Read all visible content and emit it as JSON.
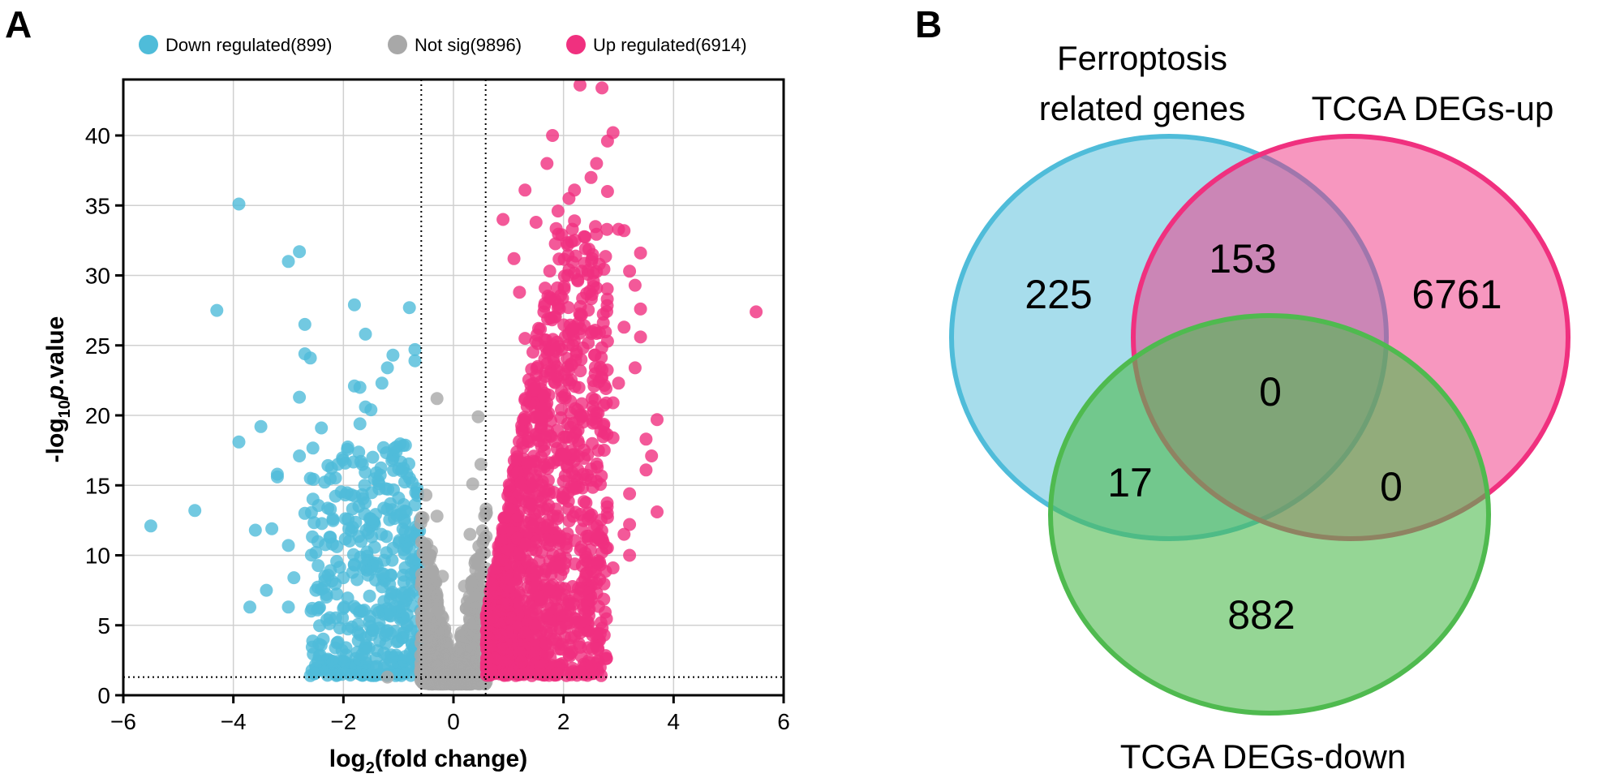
{
  "panels": {
    "a": "A",
    "b": "B"
  },
  "colors": {
    "down": "#4fbcd9",
    "notsig": "#a8a8a8",
    "up": "#f0307f",
    "green": "#4fba4f"
  },
  "chart_data": [
    {
      "type": "scatter",
      "xlabel_base": "log",
      "xlabel_sub": "2",
      "xlabel_rest": "(fold change)",
      "ylabel_pre": "-log",
      "ylabel_sub": "10",
      "ylabel_p": "p",
      "ylabel_rest": ".value",
      "xlim": [
        -6,
        6
      ],
      "ylim": [
        0,
        44
      ],
      "x_ticks": [
        -6,
        -4,
        -2,
        0,
        2,
        4,
        6
      ],
      "x_tick_labels": [
        "−6",
        "−4",
        "−2",
        "0",
        "2",
        "4",
        "6"
      ],
      "y_ticks": [
        0,
        5,
        10,
        15,
        20,
        25,
        30,
        35,
        40
      ],
      "y_tick_labels": [
        "0",
        "5",
        "10",
        "15",
        "20",
        "25",
        "30",
        "35",
        "40"
      ],
      "grid": true,
      "threshold_lines": {
        "x": [
          -0.585,
          0.585
        ],
        "y": 1.3
      },
      "legend": {
        "placement": "top",
        "items": [
          {
            "key": "down",
            "label": "Down regulated(899)"
          },
          {
            "key": "notsig",
            "label": "Not sig(9896)"
          },
          {
            "key": "up",
            "label": "Up regulated(6914)"
          }
        ]
      },
      "series": [
        {
          "key": "down",
          "name": "Down regulated(899)",
          "points": [
            [
              -5.5,
              12.1
            ],
            [
              -4.7,
              13.2
            ],
            [
              -3.9,
              35.1
            ],
            [
              -4.3,
              27.5
            ],
            [
              -3.6,
              11.8
            ],
            [
              -3.7,
              6.3
            ],
            [
              -3.9,
              18.1
            ],
            [
              -3.4,
              7.5
            ],
            [
              -3.5,
              19.2
            ],
            [
              -3.3,
              11.9
            ],
            [
              -3.2,
              15.6
            ],
            [
              -3.2,
              15.8
            ],
            [
              -3.0,
              10.7
            ],
            [
              -3.0,
              31.0
            ],
            [
              -2.8,
              31.7
            ],
            [
              -2.9,
              8.4
            ],
            [
              -2.8,
              17.1
            ],
            [
              -3.0,
              6.3
            ],
            [
              -2.7,
              24.4
            ],
            [
              -2.6,
              24.1
            ],
            [
              -2.7,
              26.5
            ],
            [
              -2.7,
              13.0
            ],
            [
              -2.8,
              21.3
            ],
            [
              -2.6,
              15.5
            ],
            [
              -2.5,
              10.2
            ],
            [
              -2.5,
              7.5
            ],
            [
              -2.4,
              19.1
            ],
            [
              -2.3,
              5.4
            ],
            [
              -2.2,
              10.8
            ],
            [
              -2.1,
              16.5
            ],
            [
              -2.0,
              8.4
            ],
            [
              -1.9,
              11.9
            ],
            [
              -1.8,
              27.9
            ],
            [
              -1.8,
              22.1
            ],
            [
              -1.7,
              22.0
            ],
            [
              -1.7,
              19.4
            ],
            [
              -1.6,
              25.8
            ],
            [
              -1.6,
              20.6
            ],
            [
              -1.5,
              20.4
            ],
            [
              -1.3,
              22.3
            ],
            [
              -1.2,
              23.4
            ],
            [
              -1.1,
              24.3
            ],
            [
              -0.8,
              27.7
            ],
            [
              -0.7,
              24.7
            ],
            [
              -0.7,
              23.9
            ],
            [
              -1.4,
              15.9
            ],
            [
              -1.5,
              12.6
            ],
            [
              -1.8,
              9.3
            ],
            [
              -2.0,
              6.2
            ],
            [
              -2.1,
              3.8
            ],
            [
              -2.2,
              2.3
            ],
            [
              -1.6,
              4.1
            ],
            [
              -1.2,
              5.8
            ],
            [
              -0.9,
              8.1
            ],
            [
              -0.8,
              10.5
            ],
            [
              -0.7,
              13.6
            ]
          ],
          "dense": {
            "xmin": -2.6,
            "xmax": -0.6,
            "ymin": 1.4,
            "ymax": 18
          }
        },
        {
          "key": "notsig",
          "name": "Not sig(9896)",
          "points": [
            [
              -0.3,
              21.2
            ],
            [
              0.45,
              19.9
            ],
            [
              0.5,
              16.5
            ],
            [
              0.35,
              15.1
            ],
            [
              -0.5,
              14.3
            ],
            [
              -0.3,
              12.8
            ],
            [
              0.3,
              11.5
            ],
            [
              -0.4,
              10.3
            ],
            [
              0.4,
              9.6
            ],
            [
              -0.2,
              8.5
            ],
            [
              0.2,
              7.8
            ],
            [
              -0.5,
              6.6
            ],
            [
              0.55,
              6.1
            ],
            [
              -0.35,
              5.2
            ],
            [
              0.25,
              4.7
            ],
            [
              0.5,
              3.6
            ],
            [
              -0.55,
              3.2
            ],
            [
              0.1,
              2.6
            ],
            [
              -0.1,
              2.1
            ],
            [
              0.6,
              1.9
            ],
            [
              -0.6,
              1.7
            ],
            [
              1.0,
              1.5
            ],
            [
              -1.2,
              1.3
            ],
            [
              1.2,
              1.6
            ]
          ],
          "dense": {
            "xmin": -0.6,
            "xmax": 0.6,
            "ymin": 0.8,
            "ymax": 13
          }
        },
        {
          "key": "up",
          "name": "Up regulated(6914)",
          "points": [
            [
              2.3,
              43.6
            ],
            [
              2.7,
              43.4
            ],
            [
              2.9,
              40.2
            ],
            [
              1.8,
              40.0
            ],
            [
              2.8,
              39.6
            ],
            [
              2.6,
              38.0
            ],
            [
              1.7,
              38.0
            ],
            [
              2.5,
              37.0
            ],
            [
              2.2,
              36.1
            ],
            [
              1.3,
              36.1
            ],
            [
              2.8,
              36.0
            ],
            [
              2.1,
              35.5
            ],
            [
              0.9,
              34.0
            ],
            [
              3.0,
              33.3
            ],
            [
              3.1,
              33.2
            ],
            [
              3.4,
              31.6
            ],
            [
              3.2,
              30.3
            ],
            [
              3.3,
              29.3
            ],
            [
              3.4,
              27.6
            ],
            [
              3.1,
              26.3
            ],
            [
              3.4,
              25.6
            ],
            [
              3.3,
              23.4
            ],
            [
              3.0,
              22.3
            ],
            [
              2.9,
              20.9
            ],
            [
              3.7,
              19.7
            ],
            [
              3.5,
              18.3
            ],
            [
              3.6,
              17.1
            ],
            [
              3.5,
              16.1
            ],
            [
              3.7,
              13.1
            ],
            [
              3.2,
              14.4
            ],
            [
              3.2,
              12.2
            ],
            [
              3.1,
              11.5
            ],
            [
              3.2,
              10.0
            ],
            [
              2.9,
              9.1
            ],
            [
              2.7,
              10.2
            ],
            [
              2.6,
              8.0
            ],
            [
              2.5,
              6.8
            ],
            [
              2.3,
              5.2
            ],
            [
              2.2,
              4.2
            ],
            [
              2.1,
              2.9
            ],
            [
              1.8,
              4.0
            ],
            [
              1.7,
              5.7
            ],
            [
              1.8,
              7.9
            ],
            [
              5.5,
              27.4
            ],
            [
              2.2,
              33.9
            ],
            [
              2.4,
              31.9
            ],
            [
              2.6,
              29.1
            ],
            [
              2.8,
              25.3
            ],
            [
              2.7,
              22.7
            ],
            [
              2.9,
              18.4
            ],
            [
              2.6,
              15.3
            ],
            [
              2.8,
              12.7
            ],
            [
              1.3,
              25.5
            ],
            [
              1.1,
              31.2
            ],
            [
              1.2,
              28.8
            ],
            [
              1.5,
              33.8
            ],
            [
              1.9,
              34.6
            ],
            [
              2.1,
              30.4
            ]
          ],
          "dense": {
            "xmin": 0.6,
            "xmax": 2.8,
            "ymin": 1.4,
            "ymax": 33.5
          }
        }
      ]
    },
    {
      "type": "venn",
      "sets": [
        {
          "key": "ferro",
          "label_line1": "Ferroptosis",
          "label_line2": "related genes",
          "color": "#4fbcd9"
        },
        {
          "key": "up",
          "label": "TCGA DEGs-up",
          "color": "#f0307f"
        },
        {
          "key": "down",
          "label": "TCGA DEGs-down",
          "color": "#4fba4f"
        }
      ],
      "regions": {
        "ferro_only": "225",
        "ferro_up": "153",
        "up_only": "6761",
        "all_three": "0",
        "ferro_down": "17",
        "up_down": "0",
        "down_only": "882"
      }
    }
  ]
}
